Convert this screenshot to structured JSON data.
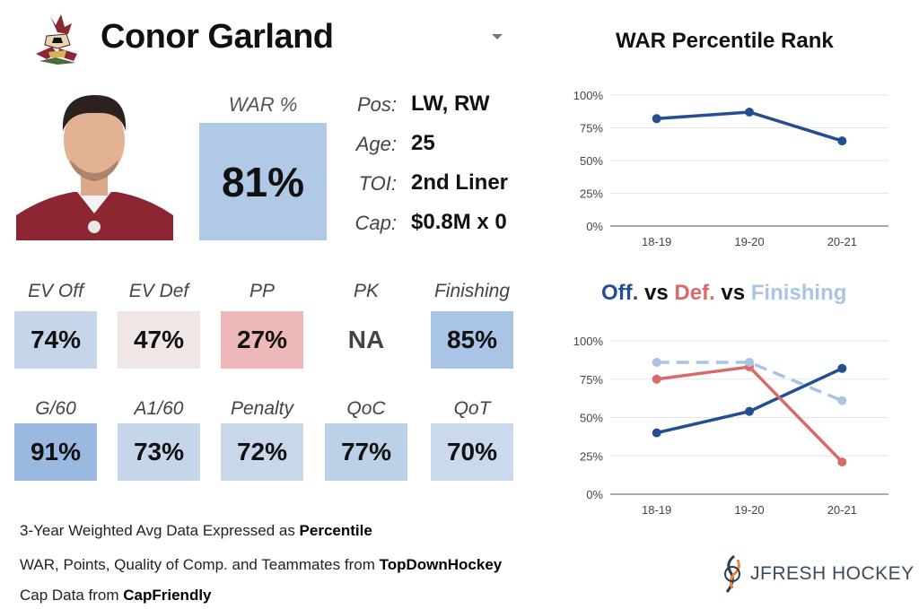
{
  "player": {
    "name": "Conor Garland",
    "war_label": "WAR %",
    "war_value": "81%",
    "info": [
      {
        "label": "Pos:",
        "value": "LW, RW"
      },
      {
        "label": "Age:",
        "value": "25"
      },
      {
        "label": "TOI:",
        "value": "2nd Liner"
      },
      {
        "label": "Cap:",
        "value": "$0.8M x 0"
      }
    ]
  },
  "stats_row1": [
    {
      "label": "EV Off",
      "value": "74%",
      "color": "#c5d5ea"
    },
    {
      "label": "EV Def",
      "value": "47%",
      "color": "#f0e6e6"
    },
    {
      "label": "PP",
      "value": "27%",
      "color": "#efb8b8"
    },
    {
      "label": "PK",
      "value": "NA",
      "color": "#ffffff",
      "text_color": "#444444"
    },
    {
      "label": "Finishing",
      "value": "85%",
      "color": "#a9c4e5"
    }
  ],
  "stats_row2": [
    {
      "label": "G/60",
      "value": "91%",
      "color": "#9ab9e0"
    },
    {
      "label": "A1/60",
      "value": "73%",
      "color": "#c6d6ea"
    },
    {
      "label": "Penalty",
      "value": "72%",
      "color": "#c8d7ea"
    },
    {
      "label": "QoC",
      "value": "77%",
      "color": "#bcd0e8"
    },
    {
      "label": "QoT",
      "value": "70%",
      "color": "#cad9ec"
    }
  ],
  "colors": {
    "war_box": "#b0c9e7",
    "off": "#234f92",
    "def": "#d86a6a",
    "finishing": "#a9c4e5"
  },
  "footer": {
    "line1_prefix": "3-Year Weighted Avg Data Expressed as ",
    "line1_bold": "Percentile",
    "line2_prefix": "WAR, Points, Quality of Comp. and Teammates from ",
    "line2_bold": "TopDownHockey",
    "line3_prefix": "Cap Data from ",
    "line3_bold": "CapFriendly"
  },
  "brand": "JFRESH HOCKEY",
  "chart_data": [
    {
      "type": "line",
      "title": "WAR Percentile Rank",
      "categories": [
        "18-19",
        "19-20",
        "20-21"
      ],
      "ylim": [
        0,
        100
      ],
      "yticks": [
        "0%",
        "25%",
        "50%",
        "75%",
        "100%"
      ],
      "grid": true,
      "series": [
        {
          "values": [
            82,
            87,
            65
          ],
          "color": "#234f92",
          "dashed": false
        }
      ]
    },
    {
      "type": "line",
      "title_parts": [
        {
          "text": "Off.",
          "color": "#234f92"
        },
        {
          "text": " vs ",
          "color": "#111111"
        },
        {
          "text": "Def.",
          "color": "#d86a6a"
        },
        {
          "text": " vs ",
          "color": "#111111"
        },
        {
          "text": "Finishing",
          "color": "#a9c4e5"
        }
      ],
      "categories": [
        "18-19",
        "19-20",
        "20-21"
      ],
      "ylim": [
        0,
        100
      ],
      "yticks": [
        "0%",
        "25%",
        "50%",
        "75%",
        "100%"
      ],
      "grid": true,
      "series": [
        {
          "values": [
            40,
            54,
            82
          ],
          "color": "#234f92",
          "dashed": false
        },
        {
          "values": [
            75,
            83,
            21
          ],
          "color": "#d86a6a",
          "dashed": false
        },
        {
          "values": [
            86,
            86,
            61
          ],
          "color": "#a9c4e5",
          "dashed": true
        }
      ]
    }
  ]
}
